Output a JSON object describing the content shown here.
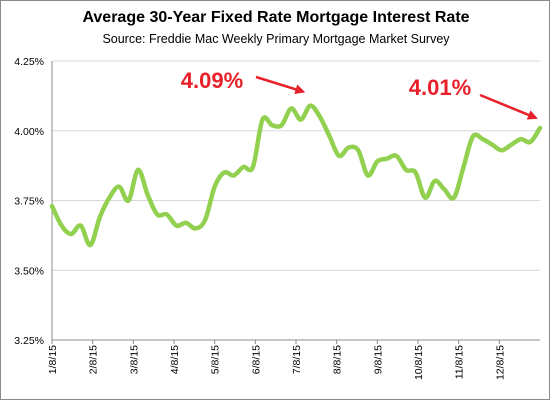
{
  "chart_data": {
    "type": "line",
    "title": "Average 30-Year Fixed Rate Mortgage Interest Rate",
    "subtitle": "Source: Freddie Mac Weekly Primary Mortgage Market Survey",
    "xlabel": "",
    "ylabel": "",
    "ylim": [
      3.25,
      4.25
    ],
    "yticks": [
      "3.25%",
      "3.50%",
      "3.75%",
      "4.00%",
      "4.25%"
    ],
    "ytick_values": [
      3.25,
      3.5,
      3.75,
      4.0,
      4.25
    ],
    "xtick_labels": [
      "1/8/15",
      "2/8/15",
      "3/8/15",
      "4/8/15",
      "5/8/15",
      "6/8/15",
      "7/8/15",
      "8/8/15",
      "9/8/15",
      "10/8/15",
      "11/8/15",
      "12/8/15"
    ],
    "grid": "horizontal",
    "line_color": "#92d050",
    "annotation_color": "#e8202a",
    "series": [
      {
        "values": [
          3.73,
          3.66,
          3.63,
          3.66,
          3.59,
          3.69,
          3.76,
          3.8,
          3.75,
          3.86,
          3.77,
          3.7,
          3.7,
          3.66,
          3.67,
          3.65,
          3.68,
          3.8,
          3.85,
          3.84,
          3.87,
          3.87,
          4.04,
          4.02,
          4.02,
          4.08,
          4.04,
          4.09,
          4.05,
          3.98,
          3.91,
          3.94,
          3.93,
          3.84,
          3.89,
          3.9,
          3.91,
          3.86,
          3.85,
          3.76,
          3.82,
          3.79,
          3.76,
          3.87,
          3.98,
          3.97,
          3.95,
          3.93,
          3.95,
          3.97,
          3.96,
          4.01
        ]
      }
    ],
    "annotations": [
      {
        "text": "4.09%",
        "value": 4.09
      },
      {
        "text": "4.01%",
        "value": 4.01
      }
    ]
  }
}
